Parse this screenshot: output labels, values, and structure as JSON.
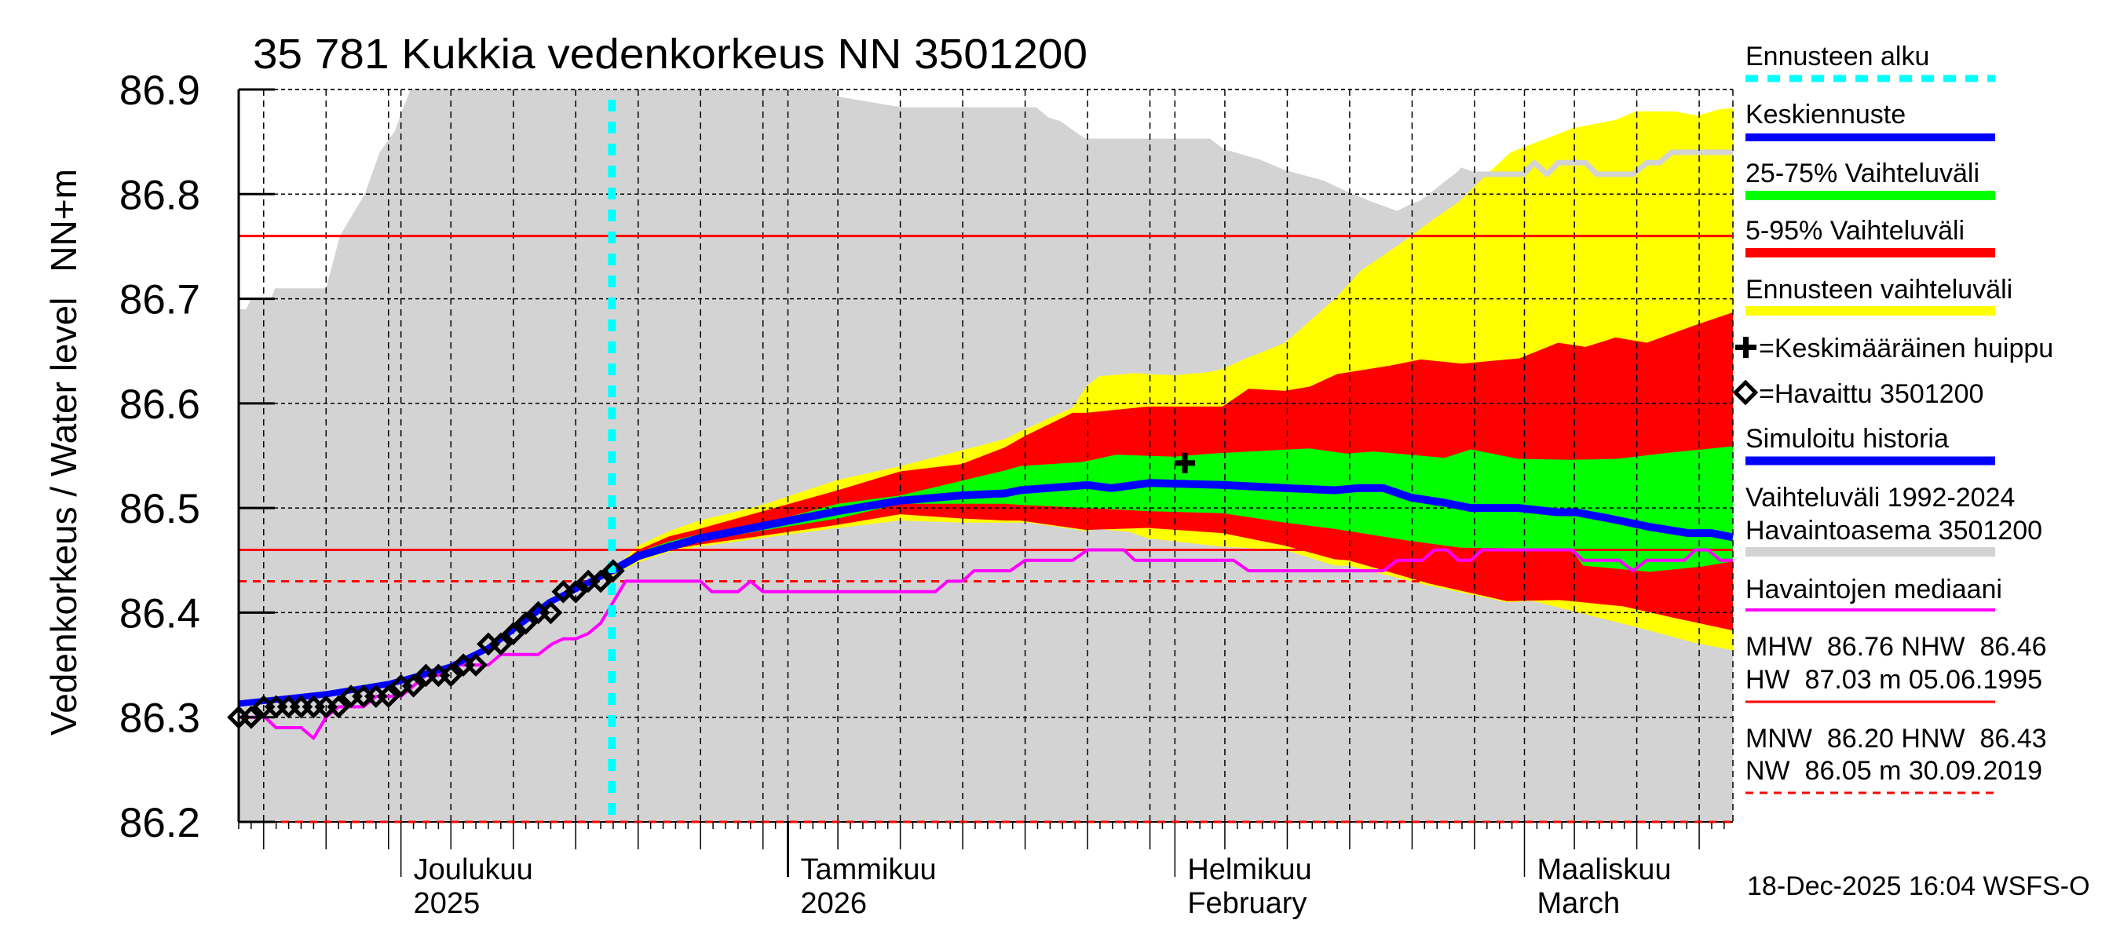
{
  "title": "35 781 Kukkia vedenkorkeus NN 3501200",
  "footer": "18-Dec-2025 16:04 WSFS-O",
  "colors": {
    "forecast_start": "#00ffff",
    "median_forecast": "#0000ff",
    "band_25_75": "#00ff00",
    "band_5_95": "#ff0000",
    "band_forecast": "#ffff00",
    "simulated": "#0000ff",
    "historic_range": "#d3d3d3",
    "obs_median": "#ff00ff",
    "ref_line": "#ff0000"
  },
  "legend": {
    "forecast_start": "Ennusteen alku",
    "median_forecast": "Keskiennuste",
    "band_25_75": "25-75% Vaihteluväli",
    "band_5_95": "5-95% Vaihteluväli",
    "band_forecast": "Ennusteen vaihteluväli",
    "mean_peak": "=Keskimääräinen huippu",
    "observed": "=Havaittu 3501200",
    "simulated": "Simuloitu historia",
    "historic_range_1": "Vaihteluväli 1992-2024",
    "historic_range_2": "Havaintoasema 3501200",
    "obs_median": "Havaintojen mediaani",
    "high_1": "MHW  86.76 NHW  86.46",
    "high_2": "HW  87.03 m 05.06.1995",
    "low_1": "MNW  86.20 HNW  86.43",
    "low_2": "NW  86.05 m 30.09.2019"
  },
  "chart_data": {
    "type": "area",
    "title": "35 781 Kukkia vedenkorkeus NN 3501200",
    "ylabel": "Vedenkorkeus / Water level",
    "ylabel_unit": "NN+m",
    "ylim": [
      86.2,
      86.9
    ],
    "xlim": [
      0,
      119.7
    ],
    "yticks": [
      86.2,
      86.3,
      86.4,
      86.5,
      86.6,
      86.7,
      86.8,
      86.9
    ],
    "ytick_labels": [
      "86.2",
      "86.3",
      "86.4",
      "86.5",
      "86.6",
      "86.7",
      "86.8",
      "86.9"
    ],
    "grid": true,
    "month_ticks": [
      {
        "day": 13,
        "label": "Joulukuu",
        "sublabel": "2025"
      },
      {
        "day": 44,
        "label": "Tammikuu",
        "sublabel": "2026"
      },
      {
        "day": 75,
        "label": "Helmikuu",
        "sublabel": "February"
      },
      {
        "day": 103,
        "label": "Maaliskuu",
        "sublabel": "March"
      }
    ],
    "grid_days": [
      2,
      7,
      12,
      13,
      17,
      22,
      27,
      32,
      37,
      42,
      44,
      48,
      53,
      58,
      63,
      68,
      73,
      75,
      79,
      84,
      89,
      94,
      99,
      103,
      107,
      112,
      117
    ],
    "forecast_start_day": 29.9,
    "ref_lines": [
      {
        "name": "MHW",
        "value": 86.76,
        "style": "solid"
      },
      {
        "name": "NHW",
        "value": 86.46,
        "style": "solid"
      },
      {
        "name": "HNW",
        "value": 86.43,
        "style": "dashed"
      },
      {
        "name": "MNW",
        "value": 86.2,
        "style": "dashed"
      }
    ],
    "historic_max": [
      [
        0,
        86.69
      ],
      [
        0.6,
        86.69
      ],
      [
        1.0,
        86.7
      ],
      [
        2.6,
        86.7
      ],
      [
        2.9,
        86.71
      ],
      [
        7.0,
        86.71
      ],
      [
        8.1,
        86.76
      ],
      [
        10.1,
        86.8
      ],
      [
        11.3,
        86.84
      ],
      [
        12.5,
        86.86
      ],
      [
        13.1,
        86.88
      ],
      [
        14.1,
        86.91
      ],
      [
        47.1,
        86.91
      ],
      [
        48.1,
        86.893
      ],
      [
        53.1,
        86.883
      ],
      [
        63.9,
        86.883
      ],
      [
        64.9,
        86.873
      ],
      [
        65.8,
        86.87
      ],
      [
        67.8,
        86.853
      ],
      [
        77.8,
        86.853
      ],
      [
        78.9,
        86.843
      ],
      [
        81.8,
        86.833
      ],
      [
        83.8,
        86.823
      ],
      [
        86.9,
        86.813
      ],
      [
        88.7,
        86.803
      ],
      [
        90.7,
        86.793
      ],
      [
        92.8,
        86.784
      ],
      [
        93.8,
        86.79
      ],
      [
        94.7,
        86.794
      ],
      [
        97.8,
        86.823
      ],
      [
        98.8,
        86.819
      ],
      [
        102.9,
        86.819
      ],
      [
        103.8,
        86.83
      ],
      [
        104.8,
        86.819
      ],
      [
        105.7,
        86.83
      ],
      [
        107.9,
        86.83
      ],
      [
        108.8,
        86.819
      ],
      [
        111.7,
        86.819
      ],
      [
        112.8,
        86.83
      ],
      [
        113.8,
        86.83
      ],
      [
        114.8,
        86.84
      ],
      [
        119.7,
        86.84
      ]
    ],
    "forecast_range": {
      "upper": [
        [
          29.9,
          86.44
        ],
        [
          32.0,
          86.464
        ],
        [
          34.5,
          86.478
        ],
        [
          36.9,
          86.488
        ],
        [
          41.7,
          86.502
        ],
        [
          48.0,
          86.527
        ],
        [
          53.0,
          86.54
        ],
        [
          57.9,
          86.555
        ],
        [
          61.4,
          86.566
        ],
        [
          62.6,
          86.573
        ],
        [
          66.8,
          86.596
        ],
        [
          67.9,
          86.616
        ],
        [
          68.9,
          86.626
        ],
        [
          71.8,
          86.629
        ],
        [
          72.8,
          86.628
        ],
        [
          74.9,
          86.627
        ],
        [
          77.8,
          86.63
        ],
        [
          78.8,
          86.633
        ],
        [
          80.5,
          86.642
        ],
        [
          82.8,
          86.653
        ],
        [
          83.8,
          86.658
        ],
        [
          84.7,
          86.667
        ],
        [
          88.0,
          86.702
        ],
        [
          89.9,
          86.727
        ],
        [
          93.0,
          86.752
        ],
        [
          95.7,
          86.776
        ],
        [
          97.8,
          86.793
        ],
        [
          99.9,
          86.818
        ],
        [
          101.9,
          86.84
        ],
        [
          106.9,
          86.863
        ],
        [
          110.3,
          86.871
        ],
        [
          111.9,
          86.879
        ],
        [
          115.0,
          86.879
        ],
        [
          116.9,
          86.875
        ],
        [
          118.6,
          86.881
        ],
        [
          119.7,
          86.882
        ]
      ],
      "lower": [
        [
          29.9,
          86.435
        ],
        [
          32.0,
          86.448
        ],
        [
          34.5,
          86.458
        ],
        [
          36.9,
          86.463
        ],
        [
          41.7,
          86.471
        ],
        [
          48.0,
          86.481
        ],
        [
          53.0,
          86.488
        ],
        [
          57.9,
          86.486
        ],
        [
          61.4,
          86.486
        ],
        [
          63.3,
          86.486
        ],
        [
          67.9,
          86.478
        ],
        [
          68.7,
          86.48
        ],
        [
          71.4,
          86.477
        ],
        [
          72.8,
          86.471
        ],
        [
          78.8,
          86.463
        ],
        [
          83.8,
          86.46
        ],
        [
          87.8,
          86.445
        ],
        [
          88.9,
          86.445
        ],
        [
          95.3,
          86.426
        ],
        [
          101.6,
          86.41
        ],
        [
          103.7,
          86.411
        ],
        [
          106.7,
          86.402
        ],
        [
          111.7,
          86.387
        ],
        [
          116.7,
          86.371
        ],
        [
          119.7,
          86.364
        ]
      ]
    },
    "band_5_95": {
      "upper": [
        [
          29.9,
          86.44
        ],
        [
          32.0,
          86.46
        ],
        [
          34.5,
          86.473
        ],
        [
          36.9,
          86.48
        ],
        [
          41.7,
          86.496
        ],
        [
          48.0,
          86.517
        ],
        [
          53.0,
          86.535
        ],
        [
          57.9,
          86.542
        ],
        [
          61.4,
          86.558
        ],
        [
          63.0,
          86.569
        ],
        [
          66.8,
          86.591
        ],
        [
          67.9,
          86.591
        ],
        [
          72.8,
          86.597
        ],
        [
          78.8,
          86.597
        ],
        [
          80.9,
          86.614
        ],
        [
          83.8,
          86.612
        ],
        [
          85.8,
          86.616
        ],
        [
          88.0,
          86.628
        ],
        [
          92.2,
          86.636
        ],
        [
          94.7,
          86.642
        ],
        [
          98.0,
          86.638
        ],
        [
          102.6,
          86.643
        ],
        [
          105.7,
          86.658
        ],
        [
          107.9,
          86.654
        ],
        [
          110.3,
          86.663
        ],
        [
          112.8,
          86.658
        ],
        [
          116.5,
          86.674
        ],
        [
          119.7,
          86.687
        ]
      ],
      "lower": [
        [
          29.9,
          86.436
        ],
        [
          32.0,
          86.45
        ],
        [
          34.5,
          86.46
        ],
        [
          36.9,
          86.465
        ],
        [
          41.7,
          86.473
        ],
        [
          48.0,
          86.484
        ],
        [
          53.0,
          86.494
        ],
        [
          57.9,
          86.49
        ],
        [
          61.4,
          86.488
        ],
        [
          62.6,
          86.488
        ],
        [
          67.9,
          86.479
        ],
        [
          72.8,
          86.481
        ],
        [
          78.8,
          86.476
        ],
        [
          83.8,
          86.464
        ],
        [
          87.8,
          86.451
        ],
        [
          88.9,
          86.45
        ],
        [
          95.3,
          86.428
        ],
        [
          101.6,
          86.411
        ],
        [
          105.8,
          86.412
        ],
        [
          110.9,
          86.406
        ],
        [
          115.0,
          86.395
        ],
        [
          119.7,
          86.383
        ]
      ]
    },
    "band_25_75": {
      "upper": [
        [
          29.9,
          86.44
        ],
        [
          32.0,
          86.458
        ],
        [
          34.5,
          86.468
        ],
        [
          36.9,
          86.475
        ],
        [
          41.7,
          86.484
        ],
        [
          48.0,
          86.504
        ],
        [
          53.0,
          86.512
        ],
        [
          57.9,
          86.526
        ],
        [
          61.4,
          86.536
        ],
        [
          62.6,
          86.54
        ],
        [
          67.6,
          86.544
        ],
        [
          70.3,
          86.551
        ],
        [
          74.9,
          86.549
        ],
        [
          78.0,
          86.552
        ],
        [
          85.8,
          86.557
        ],
        [
          88.7,
          86.552
        ],
        [
          90.9,
          86.554
        ],
        [
          93.8,
          86.551
        ],
        [
          96.6,
          86.548
        ],
        [
          98.7,
          86.556
        ],
        [
          102.5,
          86.547
        ],
        [
          106.7,
          86.546
        ],
        [
          110.4,
          86.547
        ],
        [
          114.7,
          86.553
        ],
        [
          119.7,
          86.559
        ]
      ],
      "lower": [
        [
          29.9,
          86.437
        ],
        [
          32.0,
          86.452
        ],
        [
          34.5,
          86.462
        ],
        [
          36.9,
          86.468
        ],
        [
          41.7,
          86.478
        ],
        [
          48.0,
          86.49
        ],
        [
          53.0,
          86.504
        ],
        [
          57.9,
          86.504
        ],
        [
          61.4,
          86.504
        ],
        [
          62.6,
          86.503
        ],
        [
          67.9,
          86.5
        ],
        [
          72.8,
          86.497
        ],
        [
          78.8,
          86.495
        ],
        [
          83.8,
          86.486
        ],
        [
          87.8,
          86.48
        ],
        [
          88.9,
          86.478
        ],
        [
          93.6,
          86.469
        ],
        [
          97.9,
          86.462
        ],
        [
          106.7,
          86.461
        ],
        [
          107.7,
          86.445
        ],
        [
          113.0,
          86.439
        ],
        [
          117.2,
          86.444
        ],
        [
          119.7,
          86.449
        ]
      ]
    },
    "median_forecast": [
      [
        29.9,
        86.44
      ],
      [
        32.0,
        86.454
      ],
      [
        34.5,
        86.463
      ],
      [
        36.9,
        86.471
      ],
      [
        40.3,
        86.479
      ],
      [
        48.0,
        86.497
      ],
      [
        53.0,
        86.507
      ],
      [
        57.9,
        86.512
      ],
      [
        61.4,
        86.514
      ],
      [
        62.6,
        86.517
      ],
      [
        68.0,
        86.522
      ],
      [
        69.9,
        86.519
      ],
      [
        73.0,
        86.524
      ],
      [
        78.8,
        86.522
      ],
      [
        83.8,
        86.519
      ],
      [
        87.8,
        86.517
      ],
      [
        89.7,
        86.519
      ],
      [
        91.7,
        86.519
      ],
      [
        93.9,
        86.51
      ],
      [
        96.6,
        86.505
      ],
      [
        98.7,
        86.5
      ],
      [
        102.5,
        86.5
      ],
      [
        105.6,
        86.496
      ],
      [
        107.1,
        86.496
      ],
      [
        109.8,
        86.49
      ],
      [
        113.0,
        86.482
      ],
      [
        116.1,
        86.476
      ],
      [
        118.0,
        86.476
      ],
      [
        119.7,
        86.472
      ]
    ],
    "simulated_history": [
      [
        0,
        86.313
      ],
      [
        7.0,
        86.322
      ],
      [
        12.1,
        86.332
      ],
      [
        16.9,
        86.348
      ],
      [
        20.0,
        86.366
      ],
      [
        24.9,
        86.41
      ],
      [
        29.9,
        86.44
      ]
    ],
    "observation_median": [
      [
        0,
        86.3
      ],
      [
        2.1,
        86.3
      ],
      [
        3,
        86.29
      ],
      [
        5,
        86.29
      ],
      [
        6,
        86.28
      ],
      [
        7,
        86.3
      ],
      [
        8,
        86.31
      ],
      [
        10,
        86.31
      ],
      [
        11,
        86.32
      ],
      [
        13,
        86.32
      ],
      [
        15,
        86.34
      ],
      [
        16,
        86.34
      ],
      [
        17,
        86.35
      ],
      [
        20,
        86.35
      ],
      [
        21,
        86.36
      ],
      [
        24,
        86.36
      ],
      [
        25.1,
        86.37
      ],
      [
        26,
        86.375
      ],
      [
        27,
        86.375
      ],
      [
        28,
        86.38
      ],
      [
        29,
        86.39
      ],
      [
        31,
        86.43
      ],
      [
        37,
        86.43
      ],
      [
        37.9,
        86.42
      ],
      [
        40,
        86.42
      ],
      [
        41,
        86.43
      ],
      [
        42,
        86.42
      ],
      [
        55.8,
        86.42
      ],
      [
        56.8,
        86.43
      ],
      [
        58,
        86.43
      ],
      [
        58.9,
        86.44
      ],
      [
        61.8,
        86.44
      ],
      [
        63,
        86.45
      ],
      [
        66.8,
        86.45
      ],
      [
        68,
        86.46
      ],
      [
        70.9,
        86.46
      ],
      [
        71.8,
        86.45
      ],
      [
        79.7,
        86.45
      ],
      [
        80.9,
        86.44
      ],
      [
        91.7,
        86.44
      ],
      [
        92.8,
        86.45
      ],
      [
        94.8,
        86.45
      ],
      [
        95.8,
        86.46
      ],
      [
        96.8,
        86.46
      ],
      [
        97.7,
        86.45
      ],
      [
        98.7,
        86.45
      ],
      [
        99.6,
        86.46
      ],
      [
        106.8,
        86.46
      ],
      [
        107.7,
        86.45
      ],
      [
        110.6,
        86.45
      ],
      [
        111.7,
        86.44
      ],
      [
        112.8,
        86.45
      ],
      [
        115.8,
        86.45
      ],
      [
        116.7,
        86.46
      ],
      [
        117.7,
        86.46
      ],
      [
        118.7,
        86.45
      ],
      [
        119.7,
        86.45
      ]
    ],
    "observed": [
      [
        0,
        86.3
      ],
      [
        1,
        86.3
      ],
      [
        2,
        86.31
      ],
      [
        3,
        86.31
      ],
      [
        4,
        86.31
      ],
      [
        5,
        86.31
      ],
      [
        6,
        86.31
      ],
      [
        7,
        86.31
      ],
      [
        8,
        86.31
      ],
      [
        9,
        86.32
      ],
      [
        10,
        86.32
      ],
      [
        11,
        86.32
      ],
      [
        12,
        86.32
      ],
      [
        13,
        86.33
      ],
      [
        14,
        86.33
      ],
      [
        15,
        86.34
      ],
      [
        16,
        86.34
      ],
      [
        17,
        86.34
      ],
      [
        18,
        86.35
      ],
      [
        19,
        86.35
      ],
      [
        20,
        86.37
      ],
      [
        21,
        86.37
      ],
      [
        22,
        86.38
      ],
      [
        23,
        86.39
      ],
      [
        24,
        86.4
      ],
      [
        25,
        86.4
      ],
      [
        26,
        86.42
      ],
      [
        27,
        86.42
      ],
      [
        28,
        86.43
      ],
      [
        29,
        86.43
      ],
      [
        30,
        86.44
      ]
    ],
    "mean_peak": [
      75.8,
      86.543
    ]
  }
}
